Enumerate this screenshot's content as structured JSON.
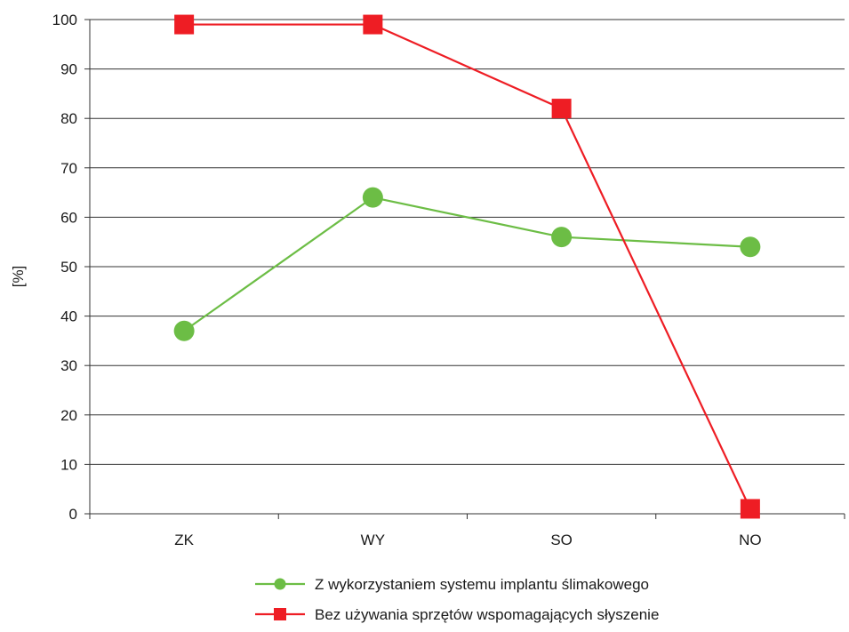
{
  "chart_data": {
    "type": "line",
    "title": "",
    "xlabel": "",
    "ylabel": "[%]",
    "categories": [
      "ZK",
      "WY",
      "SO",
      "NO"
    ],
    "ylim": [
      0,
      100
    ],
    "yticks": [
      0,
      10,
      20,
      30,
      40,
      50,
      60,
      70,
      80,
      90,
      100
    ],
    "grid": "horizontal",
    "legend_position": "bottom",
    "series": [
      {
        "name": "Z wykorzystaniem systemu implantu ślimakowego",
        "values": [
          37,
          64,
          56,
          54
        ],
        "color": "#6cbd45",
        "marker": "circle"
      },
      {
        "name": "Bez używania sprzętów wspomagających słyszenie",
        "values": [
          99,
          99,
          82,
          1
        ],
        "color": "#ee1d24",
        "marker": "square"
      }
    ]
  }
}
